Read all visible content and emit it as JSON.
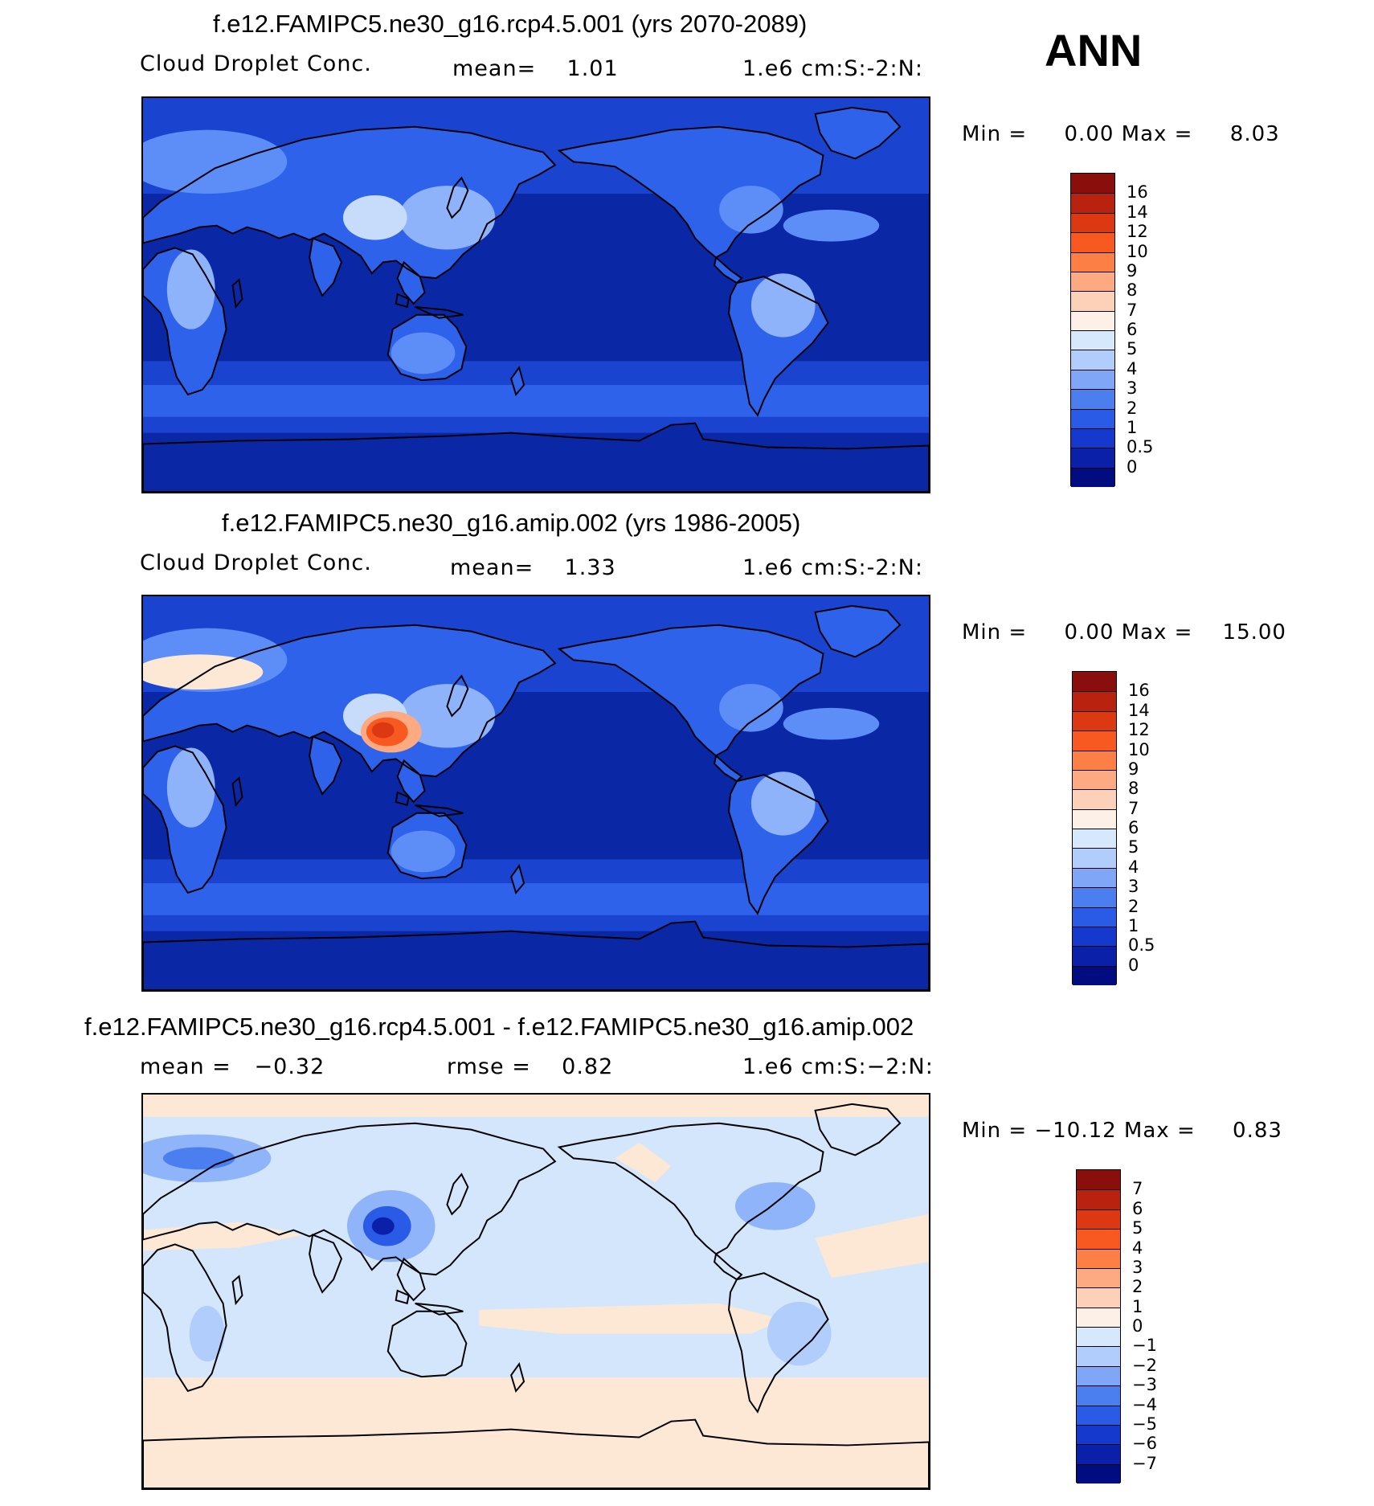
{
  "season": "ANN",
  "colors": {
    "ocean_deep": "#0a27a6",
    "ocean_mid": "#1a44cf",
    "band_mid": "#2f62ea",
    "band_light": "#5d8df7",
    "land_light": "#8fb3fa",
    "land_pale": "#c7dcfb",
    "hot": "#d8431a",
    "coast": "#000000",
    "diff_neg1": "#d4e6fb",
    "diff_pos": "#fde8d6",
    "diff_neg_mid": "#90b4fa",
    "diff_neg_strong": "#1f40c9"
  },
  "panels": [
    {
      "id": "future",
      "title": "f.e12.FAMIPC5.ne30_g16.rcp4.5.001 (yrs 2070-2089)",
      "left_label": "Cloud Droplet Conc.",
      "mid_label": "mean=    1.01",
      "right_label": "1.e6 cm:S:-2:N:",
      "minmax": "Min =     0.00 Max =     8.03",
      "colorbar": {
        "labels": [
          "16",
          "14",
          "12",
          "10",
          "9",
          "8",
          "7",
          "6",
          "5",
          "4",
          "3",
          "2",
          "1",
          "0.5",
          "0"
        ],
        "colors": [
          "#8a0e0b",
          "#b8220f",
          "#dc3812",
          "#f75920",
          "#fc7f45",
          "#fdaa82",
          "#fdd1b8",
          "#fdf0e6",
          "#d6e8fc",
          "#b0cdfb",
          "#7fa6f7",
          "#4b7ff0",
          "#2a5be6",
          "#1639cd",
          "#0a20a8",
          "#000c80"
        ]
      },
      "features": "base"
    },
    {
      "id": "present",
      "title": "f.e12.FAMIPC5.ne30_g16.amip.002 (yrs 1986-2005)",
      "left_label": "Cloud Droplet Conc.",
      "mid_label": "mean=    1.33",
      "right_label": "1.e6 cm:S:-2:N:",
      "minmax": "Min =     0.00 Max =    15.00",
      "colorbar": {
        "labels": [
          "16",
          "14",
          "12",
          "10",
          "9",
          "8",
          "7",
          "6",
          "5",
          "4",
          "3",
          "2",
          "1",
          "0.5",
          "0"
        ],
        "colors": [
          "#8a0e0b",
          "#b8220f",
          "#dc3812",
          "#f75920",
          "#fc7f45",
          "#fdaa82",
          "#fdd1b8",
          "#fdf0e6",
          "#d6e8fc",
          "#b0cdfb",
          "#7fa6f7",
          "#4b7ff0",
          "#2a5be6",
          "#1639cd",
          "#0a20a8",
          "#000c80"
        ]
      },
      "features": "base_hot"
    },
    {
      "id": "difference",
      "title": "f.e12.FAMIPC5.ne30_g16.rcp4.5.001 - f.e12.FAMIPC5.ne30_g16.amip.002",
      "left_label": "mean =   −0.32",
      "mid_label": "rmse =    0.82",
      "right_label": "1.e6 cm:S:−2:N:",
      "minmax": "Min = −10.12 Max =     0.83",
      "colorbar": {
        "labels": [
          "7",
          "6",
          "5",
          "4",
          "3",
          "2",
          "1",
          "0",
          "−1",
          "−2",
          "−3",
          "−4",
          "−5",
          "−6",
          "−7"
        ],
        "colors": [
          "#8a0e0b",
          "#b8220f",
          "#dc3812",
          "#f75920",
          "#fc7f45",
          "#fdaa82",
          "#fdd1b8",
          "#fdf0e6",
          "#d6e8fc",
          "#b0cdfb",
          "#7fa6f7",
          "#4b7ff0",
          "#2a5be6",
          "#1639cd",
          "#0a20a8",
          "#000c80"
        ]
      },
      "features": "diff"
    }
  ]
}
